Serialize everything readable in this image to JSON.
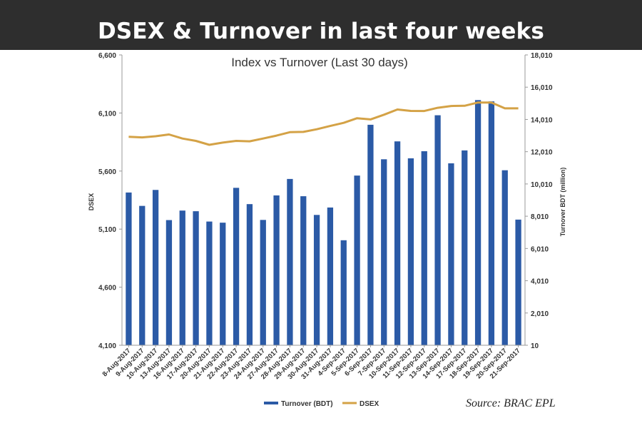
{
  "page": {
    "banner_title": "DSEX & Turnover in last four weeks",
    "source": "Source: BRAC EPL"
  },
  "colors": {
    "banner_bg": "#2e2e2e",
    "bar": "#2b5aa6",
    "line": "#d4a246",
    "axis": "#999999"
  },
  "chart_data": {
    "type": "bar",
    "title": "Index vs Turnover (Last 30 days)",
    "categories": [
      "8-Aug-2017",
      "9-Aug-2017",
      "10-Aug-2017",
      "13-Aug-2017",
      "16-Aug-2017",
      "17-Aug-2017",
      "20-Aug-2017",
      "21-Aug-2017",
      "22-Aug-2017",
      "23-Aug-2017",
      "24-Aug-2017",
      "27-Aug-2017",
      "28-Aug-2017",
      "29-Aug-2017",
      "30-Aug-2017",
      "31-Aug-2017",
      "4-Sep-2017",
      "5-Sep-2017",
      "6-Sep-2017",
      "7-Sep-2017",
      "10-Sep-2017",
      "11-Sep-2017",
      "12-Sep-2017",
      "13-Sep-2017",
      "14-Sep-2017",
      "17-Sep-2017",
      "18-Sep-2017",
      "19-Sep-2017",
      "20-Sep-2017",
      "21-Sep-2017"
    ],
    "series": [
      {
        "name": "Turnover (BDT)",
        "type": "bar",
        "axis": "right",
        "values": [
          9480,
          8650,
          9640,
          7770,
          8360,
          8320,
          7680,
          7610,
          9770,
          8760,
          7780,
          9300,
          10320,
          9250,
          8090,
          8550,
          6520,
          10530,
          13680,
          11540,
          12650,
          11600,
          12040,
          14270,
          11290,
          12090,
          15210,
          15130,
          10860,
          7800
        ]
      },
      {
        "name": "DSEX",
        "type": "line",
        "axis": "left",
        "values": [
          5895,
          5890,
          5900,
          5915,
          5880,
          5860,
          5826,
          5845,
          5860,
          5856,
          5880,
          5905,
          5935,
          5937,
          5960,
          5988,
          6015,
          6055,
          6045,
          6085,
          6130,
          6118,
          6117,
          6145,
          6160,
          6162,
          6190,
          6190,
          6140,
          6140
        ]
      }
    ],
    "y_left": {
      "label": "DSEX",
      "ylim": [
        4100,
        6600
      ],
      "ticks": [
        "4,100",
        "4,600",
        "5,100",
        "5,600",
        "6,100",
        "6,600"
      ]
    },
    "y_right": {
      "label": "Turnover BDT (million)",
      "ylim": [
        10,
        18010
      ],
      "ticks": [
        "10",
        "2,010",
        "4,010",
        "6,010",
        "8,010",
        "10,010",
        "12,010",
        "14,010",
        "16,010",
        "18,010"
      ]
    },
    "legend": [
      {
        "label": "Turnover (BDT)",
        "kind": "bar"
      },
      {
        "label": "DSEX",
        "kind": "line"
      }
    ],
    "legend_position": "bottom",
    "grid": false
  }
}
